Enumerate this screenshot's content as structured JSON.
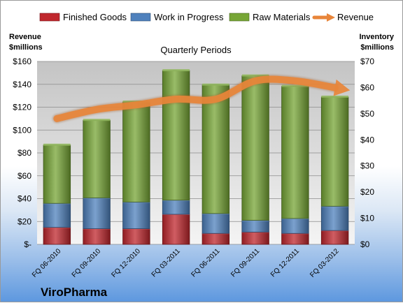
{
  "chart_data": {
    "type": "bar",
    "title": "Quarterly Periods",
    "company": "ViroPharma",
    "left_axis_title": [
      "Revenue",
      "$millions"
    ],
    "right_axis_title": [
      "Inventory",
      "$millions"
    ],
    "categories": [
      "FQ 06-2010",
      "FQ 09-2010",
      "FQ 12-2010",
      "FQ 03-2011",
      "FQ 06-2011",
      "FQ 09-2011",
      "FQ 12-2011",
      "FQ 03-2012"
    ],
    "left_ticks": [
      "$-",
      "$20",
      "$40",
      "$60",
      "$80",
      "$100",
      "$120",
      "$140",
      "$160"
    ],
    "right_ticks": [
      "$0",
      "$10",
      "$20",
      "$30",
      "$40",
      "$50",
      "$60",
      "$70"
    ],
    "ylim_left": [
      0,
      160
    ],
    "ylim_right": [
      0,
      70
    ],
    "legend_position": "top",
    "grid": true,
    "stacked_series": [
      {
        "name": "Finished Goods",
        "axis": "right",
        "color": "#c0272d",
        "values": [
          6.5,
          6,
          6,
          11.5,
          4.2,
          4.7,
          4.2,
          5.3
        ]
      },
      {
        "name": "Work in Progress",
        "axis": "right",
        "color": "#4f81bd",
        "values": [
          9.2,
          11.8,
          10.2,
          5.4,
          7.6,
          4.5,
          5.7,
          9.3
        ]
      },
      {
        "name": "Raw Materials",
        "axis": "right",
        "color": "#77a636",
        "values": [
          22.3,
          29.7,
          38.3,
          49.6,
          49.2,
          55.3,
          50.6,
          41.8
        ]
      }
    ],
    "line_series": {
      "name": "Revenue",
      "axis": "left",
      "color": "#e8853a",
      "values": [
        110,
        118,
        122,
        127,
        127,
        143,
        143,
        137
      ]
    }
  }
}
